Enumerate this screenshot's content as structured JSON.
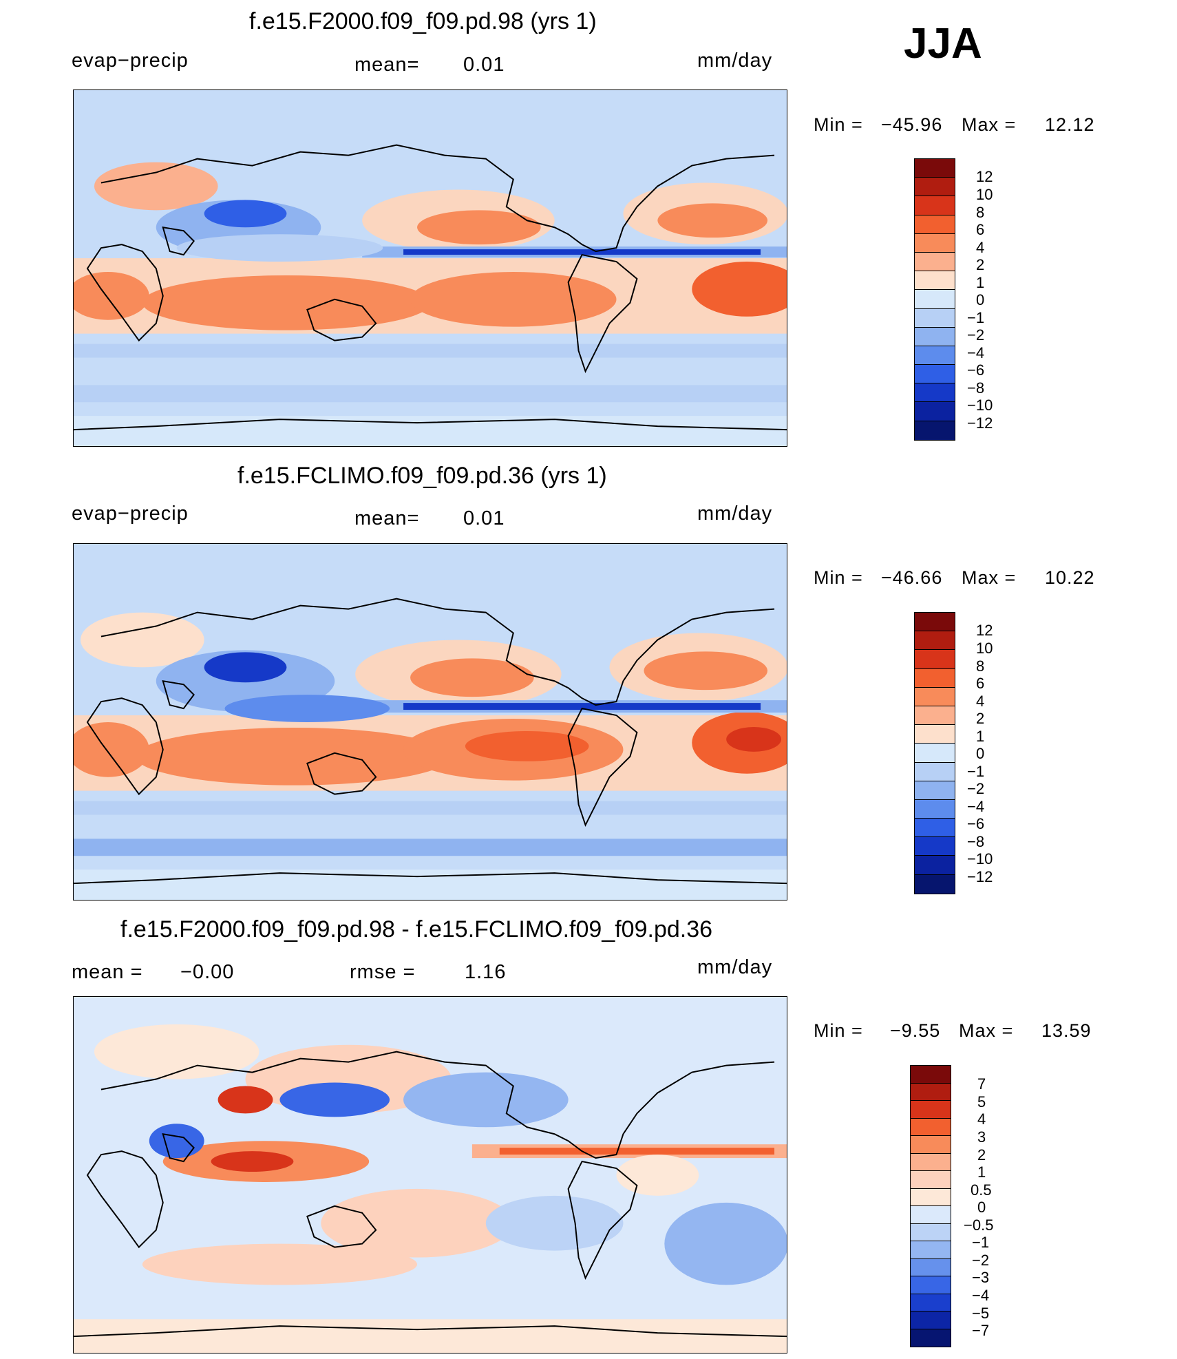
{
  "season": "JJA",
  "colors": {
    "panel_contours_12": [
      "#7a0a0a",
      "#b01d10",
      "#d8341a",
      "#f2602f",
      "#f88b5a",
      "#fbb08e",
      "#fde0cc",
      "#d6e8fa",
      "#b7d0f5",
      "#8fb3f0",
      "#5d8ced",
      "#2f5fe6",
      "#1539c8",
      "#0b22a0",
      "#06156e"
    ],
    "diff_contours": [
      "#7a0a0a",
      "#b01d10",
      "#d8341a",
      "#f2602f",
      "#f88b5a",
      "#fbb08e",
      "#fdd2bd",
      "#fde8d8",
      "#dbe9fb",
      "#bcd3f6",
      "#94b6f1",
      "#6691ec",
      "#3866e6",
      "#1a3fcd",
      "#0c25a6",
      "#061571"
    ],
    "land_outline": "#000000"
  },
  "panels": [
    {
      "title": "f.e15.F2000.f09_f09.pd.98 (yrs 1)",
      "left_label": "evap−precip",
      "mean_label": "mean=",
      "mean_value": "0.01",
      "units": "mm/day",
      "min_label": "Min  =",
      "min_value": "−45.96",
      "max_label": "Max  =",
      "max_value": "12.12",
      "colorbar_labels": [
        "12",
        "10",
        "8",
        "6",
        "4",
        "2",
        "1",
        "0",
        "−1",
        "−2",
        "−4",
        "−6",
        "−8",
        "−10",
        "−12"
      ]
    },
    {
      "title": "f.e15.FCLIMO.f09_f09.pd.36 (yrs 1)",
      "left_label": "evap−precip",
      "mean_label": "mean=",
      "mean_value": "0.01",
      "units": "mm/day",
      "min_label": "Min  =",
      "min_value": "−46.66",
      "max_label": "Max  =",
      "max_value": "10.22",
      "colorbar_labels": [
        "12",
        "10",
        "8",
        "6",
        "4",
        "2",
        "1",
        "0",
        "−1",
        "−2",
        "−4",
        "−6",
        "−8",
        "−10",
        "−12"
      ]
    },
    {
      "title": "f.e15.F2000.f09_f09.pd.98 - f.e15.FCLIMO.f09_f09.pd.36",
      "mean_label": "mean  =",
      "mean_value": "−0.00",
      "rmse_label": "rmse  =",
      "rmse_value": "1.16",
      "units": "mm/day",
      "min_label": "Min  =",
      "min_value": "−9.55",
      "max_label": "Max  =",
      "max_value": "13.59",
      "colorbar_labels": [
        "7",
        "5",
        "4",
        "3",
        "2",
        "1",
        "0.5",
        "0",
        "−0.5",
        "−1",
        "−2",
        "−3",
        "−4",
        "−5",
        "−7"
      ]
    }
  ]
}
